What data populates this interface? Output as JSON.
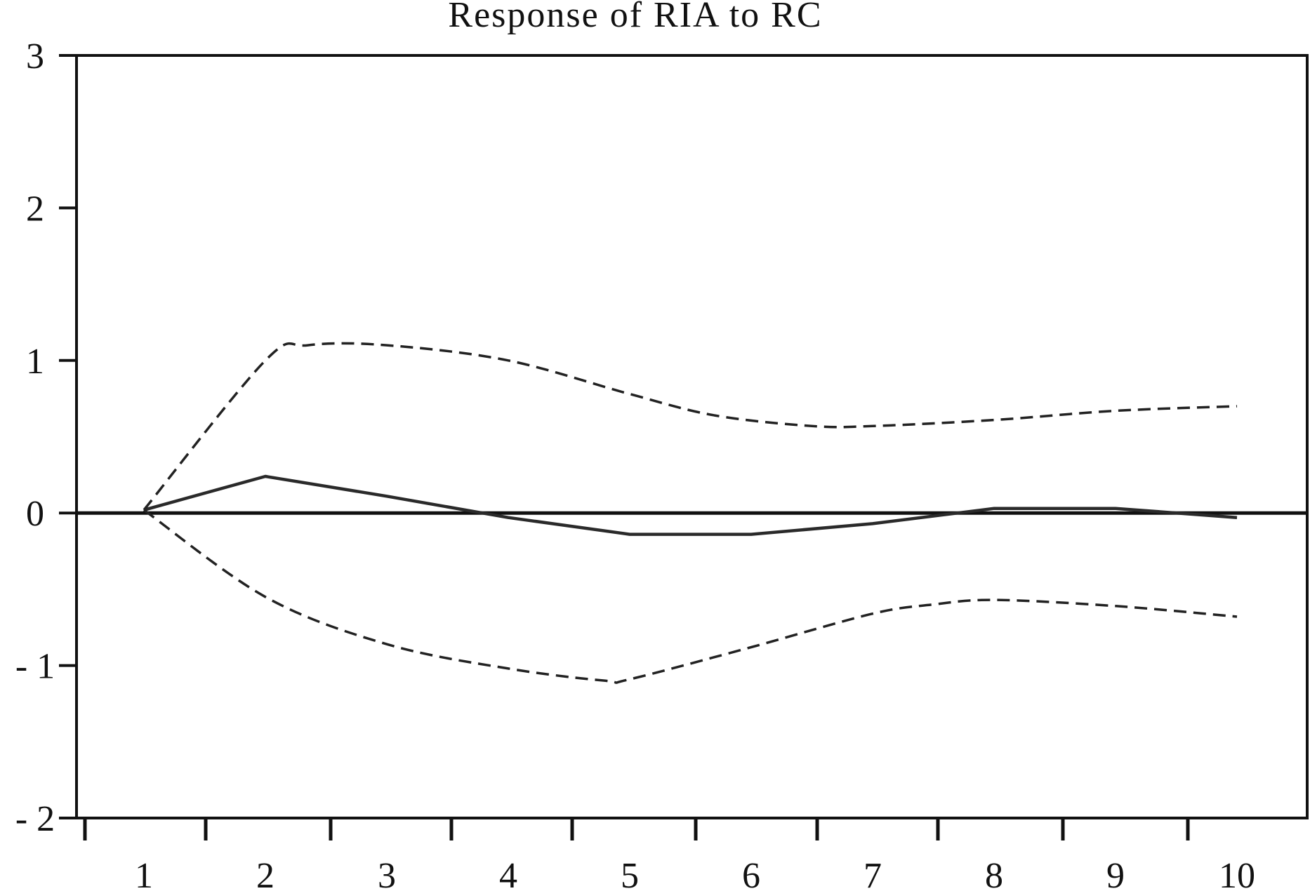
{
  "chart_data": {
    "type": "line",
    "title": "Response of RIA to RC",
    "xlabel": "",
    "ylabel": "",
    "x_tick_labels": [
      "1",
      "2",
      "3",
      "4",
      "5",
      "6",
      "7",
      "8",
      "9",
      "10"
    ],
    "y_tick_labels": [
      "3",
      "2",
      "1",
      "0",
      "- 1",
      "- 2"
    ],
    "y_tick_values": [
      3,
      2,
      1,
      0,
      -1,
      -2
    ],
    "ylim": [
      -2,
      3
    ],
    "grid": false,
    "zero_line": true,
    "series": [
      {
        "style": "solid",
        "x": [
          1,
          2,
          3,
          4,
          5,
          6,
          7,
          8,
          9,
          10
        ],
        "y": [
          0.02,
          0.24,
          0.11,
          -0.03,
          -0.14,
          -0.14,
          -0.07,
          0.03,
          0.03,
          -0.03
        ]
      },
      {
        "style": "dashed",
        "x": [
          1,
          2,
          2.35,
          3,
          4,
          5,
          5.7,
          6.5,
          7,
          8,
          9,
          10
        ],
        "y": [
          0.02,
          1.0,
          1.1,
          1.1,
          1.0,
          0.78,
          0.64,
          0.57,
          0.57,
          0.61,
          0.67,
          0.7
        ]
      },
      {
        "style": "dashed",
        "x": [
          1,
          2,
          3,
          4,
          4.8,
          5,
          6,
          7,
          7.5,
          8,
          9,
          10
        ],
        "y": [
          0.02,
          -0.55,
          -0.86,
          -1.02,
          -1.1,
          -1.09,
          -0.88,
          -0.66,
          -0.6,
          -0.57,
          -0.61,
          -0.68
        ]
      }
    ]
  }
}
